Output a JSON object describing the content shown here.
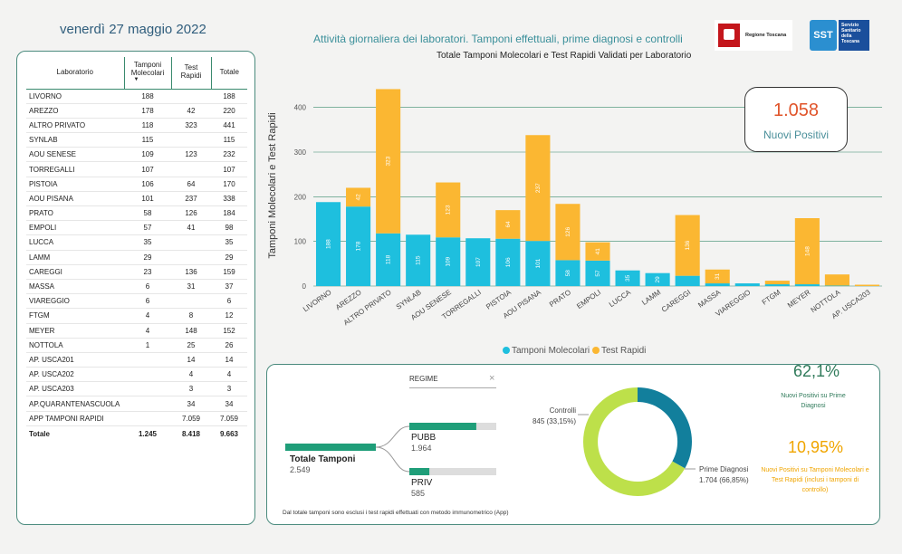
{
  "header": {
    "date": "venerdì 27 maggio 2022",
    "page_title": "Attività giornaliera dei laboratori. Tamponi effettuali, prime diagnosi e controlli",
    "logo_tuscany_text": "Regione Toscana",
    "logo_sst_abbr": "SST",
    "logo_sst_text": "Servizio Sanitario della Toscana"
  },
  "table": {
    "headers": [
      "Laboratorio",
      "Tamponi Molecolari",
      "Test Rapidi",
      "Totale"
    ],
    "rows": [
      [
        "LIVORNO",
        "188",
        "",
        "188"
      ],
      [
        "AREZZO",
        "178",
        "42",
        "220"
      ],
      [
        "ALTRO PRIVATO",
        "118",
        "323",
        "441"
      ],
      [
        "SYNLAB",
        "115",
        "",
        "115"
      ],
      [
        "AOU SENESE",
        "109",
        "123",
        "232"
      ],
      [
        "TORREGALLI",
        "107",
        "",
        "107"
      ],
      [
        "PISTOIA",
        "106",
        "64",
        "170"
      ],
      [
        "AOU PISANA",
        "101",
        "237",
        "338"
      ],
      [
        "PRATO",
        "58",
        "126",
        "184"
      ],
      [
        "EMPOLI",
        "57",
        "41",
        "98"
      ],
      [
        "LUCCA",
        "35",
        "",
        "35"
      ],
      [
        "LAMM",
        "29",
        "",
        "29"
      ],
      [
        "CAREGGI",
        "23",
        "136",
        "159"
      ],
      [
        "MASSA",
        "6",
        "31",
        "37"
      ],
      [
        "VIAREGGIO",
        "6",
        "",
        "6"
      ],
      [
        "FTGM",
        "4",
        "8",
        "12"
      ],
      [
        "MEYER",
        "4",
        "148",
        "152"
      ],
      [
        "NOTTOLA",
        "1",
        "25",
        "26"
      ],
      [
        "AP. USCA201",
        "",
        "14",
        "14"
      ],
      [
        "AP. USCA202",
        "",
        "4",
        "4"
      ],
      [
        "AP. USCA203",
        "",
        "3",
        "3"
      ],
      [
        "AP.QUARANTENASCUOLA",
        "",
        "34",
        "34"
      ],
      [
        "APP TAMPONI RAPIDI",
        "",
        "7.059",
        "7.059"
      ]
    ],
    "total": [
      "Totale",
      "1.245",
      "8.418",
      "9.663"
    ]
  },
  "chart_data": {
    "type": "bar",
    "stacked": true,
    "title": "Totale Tamponi Molecolari e Test Rapidi Validati per Laboratorio",
    "ylabel": "Tamponi Molecolari e Test Rapidi",
    "ylim": [
      0,
      450
    ],
    "yticks": [
      0,
      100,
      200,
      300,
      400
    ],
    "categories": [
      "LIVORNO",
      "AREZZO",
      "ALTRO PRIVATO",
      "SYNLAB",
      "AOU SENESE",
      "TORREGALLI",
      "PISTOIA",
      "AOU PISANA",
      "PRATO",
      "EMPOLI",
      "LUCCA",
      "LAMM",
      "CAREGGI",
      "MASSA",
      "VIAREGGIO",
      "FTGM",
      "MEYER",
      "NOTTOLA",
      "AP. USCA203"
    ],
    "series": [
      {
        "name": "Tamponi Molecolari",
        "color": "#1ebfde",
        "values": [
          188,
          178,
          118,
          115,
          109,
          107,
          106,
          101,
          58,
          57,
          35,
          29,
          23,
          6,
          6,
          4,
          4,
          1,
          0
        ]
      },
      {
        "name": "Test Rapidi",
        "color": "#fbb732",
        "values": [
          0,
          42,
          323,
          0,
          123,
          0,
          64,
          237,
          126,
          41,
          0,
          0,
          136,
          31,
          0,
          8,
          148,
          25,
          3
        ]
      }
    ],
    "legend_position": "bottom"
  },
  "kpi": {
    "value": "1.058",
    "label": "Nuovi Positivi"
  },
  "regime": {
    "label": "REGIME",
    "close": "×",
    "root_label": "Totale Tamponi",
    "root_value": "2.549",
    "root_fraction": 1.0,
    "branches": [
      {
        "label": "PUBB",
        "value": "1.964",
        "fraction": 0.77
      },
      {
        "label": "PRIV",
        "value": "585",
        "fraction": 0.23
      }
    ],
    "color": "#1f9e79"
  },
  "donut": {
    "slices": [
      {
        "label": "Controlli",
        "value_text": "845 (33,15%)",
        "value": 845,
        "color": "#127f9c"
      },
      {
        "label": "Prime Diagnosi",
        "value_text": "1.704 (66,85%)",
        "value": 1704,
        "color": "#bde04a"
      }
    ]
  },
  "stats": {
    "pct1": "62,1%",
    "pct1_label": "Nuovi Positivi su Prime Diagnosi",
    "pct2": "10,95%",
    "pct2_label": "Nuovi Positivi su Tamponi Molecolari e Test Rapidi (inclusi i tamponi di controllo)"
  },
  "footnote": "Dal totale tamponi sono esclusi i test rapidi effettuati con metodo immunometrico (App)"
}
